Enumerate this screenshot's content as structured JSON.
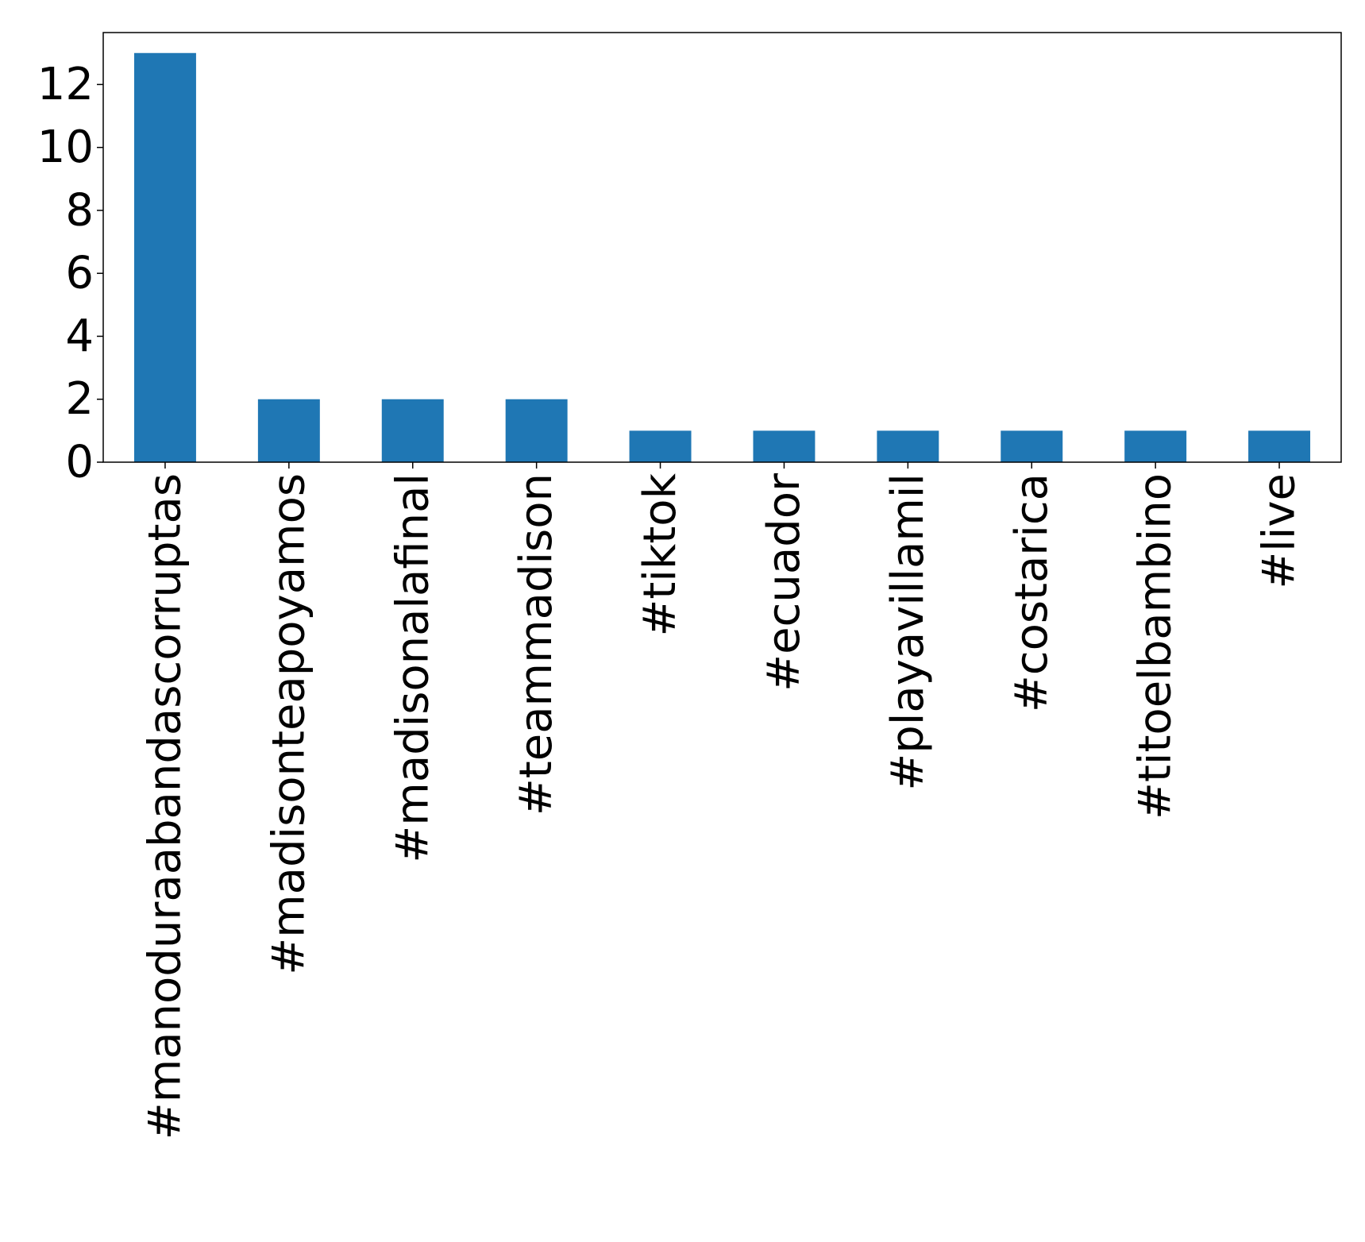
{
  "chart_data": {
    "type": "bar",
    "title": "",
    "xlabel": "",
    "ylabel": "",
    "categories": [
      "#manoduraabandascorruptas",
      "#madisonteapoyamos",
      "#madisonalafinal",
      "#teammadison",
      "#tiktok",
      "#ecuador",
      "#playavillamil",
      "#costarica",
      "#titoelbambino",
      "#live"
    ],
    "values": [
      13,
      2,
      2,
      2,
      1,
      1,
      1,
      1,
      1,
      1
    ],
    "ylim": [
      0,
      13.65
    ],
    "yticks": [
      0,
      2,
      4,
      6,
      8,
      10,
      12
    ],
    "ytick_labels": [
      "0",
      "2",
      "4",
      "6",
      "8",
      "10",
      "12"
    ],
    "grid": false,
    "legend": false,
    "bar_color": "#1f77b4"
  }
}
